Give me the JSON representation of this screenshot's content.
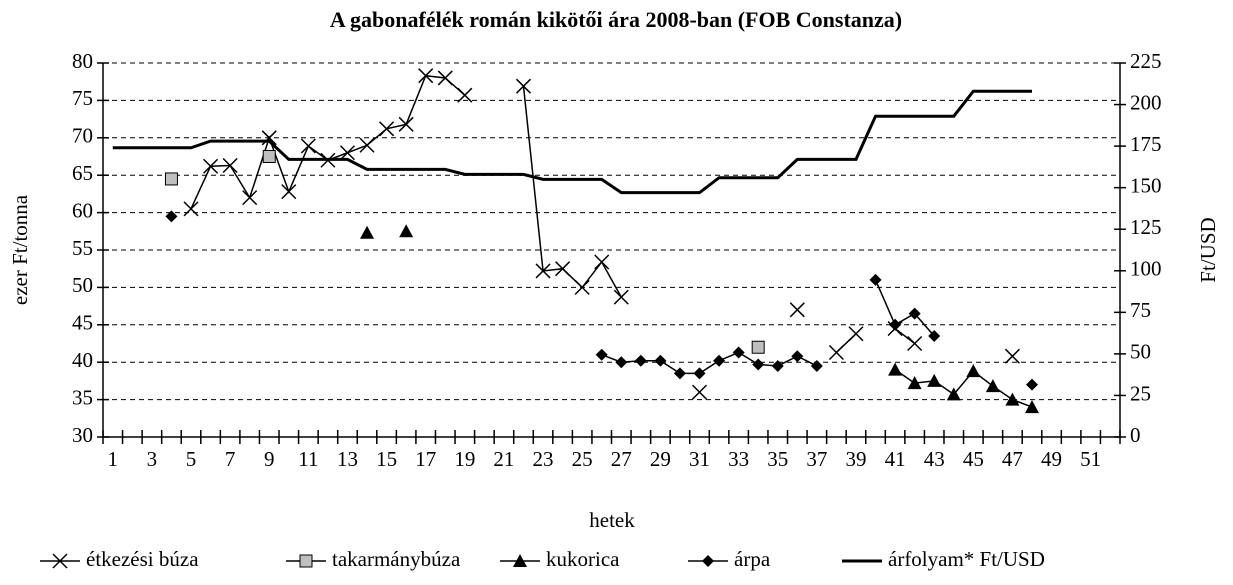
{
  "chart_data": {
    "type": "line",
    "title": "A gabonafélék román kikötői ára 2008-ban (FOB Constanza)",
    "xlabel": "hetek",
    "ylabel": "ezer Ft/tonna",
    "y2label": "Ft/USD",
    "categories": [
      1,
      null,
      3,
      null,
      5,
      null,
      7,
      null,
      9,
      null,
      11,
      null,
      13,
      null,
      15,
      null,
      17,
      null,
      19,
      null,
      21,
      null,
      23,
      null,
      25,
      null,
      27,
      null,
      29,
      null,
      31,
      null,
      33,
      null,
      35,
      null,
      37,
      null,
      39,
      null,
      41,
      null,
      43,
      null,
      45,
      null,
      47,
      null,
      49,
      null,
      51,
      null
    ],
    "ylim": [
      30,
      80
    ],
    "yticks": [
      30,
      35,
      40,
      45,
      50,
      55,
      60,
      65,
      70,
      75,
      80
    ],
    "y2lim": [
      0,
      225
    ],
    "y2ticks": [
      0,
      25,
      50,
      75,
      100,
      125,
      150,
      175,
      200,
      225
    ],
    "grid": true,
    "legend": "bottom",
    "series": [
      {
        "name": "étkezési búza",
        "color": "#000000",
        "marker": "x",
        "values": [
          null,
          null,
          null,
          null,
          60.5,
          66.2,
          66.3,
          62,
          70,
          62.8,
          68.9,
          67,
          68,
          69,
          71.2,
          71.8,
          78.3,
          78,
          75.7,
          null,
          null,
          76.9,
          52.2,
          52.5,
          50,
          53.4,
          48.7,
          null,
          null,
          null,
          36,
          null,
          null,
          null,
          null,
          47,
          null,
          41.3,
          43.8,
          null,
          44.5,
          42.5,
          null,
          null,
          null,
          null,
          40.8,
          null,
          null,
          null,
          null,
          null
        ]
      },
      {
        "name": "takarmánybúza",
        "color": "#000000",
        "marker": "square",
        "values": [
          null,
          null,
          null,
          64.5,
          null,
          null,
          null,
          null,
          67.5,
          null,
          null,
          null,
          null,
          null,
          null,
          null,
          null,
          null,
          null,
          null,
          null,
          null,
          null,
          null,
          null,
          null,
          null,
          null,
          null,
          null,
          null,
          null,
          null,
          42,
          null,
          null,
          null,
          null,
          null,
          null,
          null,
          null,
          null,
          null,
          null,
          null,
          null,
          null,
          null,
          null,
          null,
          null
        ]
      },
      {
        "name": "kukorica",
        "color": "#000000",
        "marker": "triangle",
        "values": [
          null,
          null,
          null,
          null,
          null,
          null,
          null,
          null,
          null,
          null,
          null,
          null,
          null,
          57.3,
          null,
          57.5,
          null,
          null,
          null,
          null,
          null,
          null,
          null,
          null,
          null,
          null,
          null,
          null,
          null,
          null,
          null,
          null,
          null,
          null,
          null,
          null,
          null,
          null,
          null,
          null,
          39,
          37.2,
          37.5,
          35.7,
          38.8,
          36.8,
          35,
          34,
          null,
          null,
          null,
          null
        ]
      },
      {
        "name": "árpa",
        "color": "#000000",
        "marker": "diamond",
        "values": [
          null,
          null,
          null,
          59.5,
          null,
          null,
          null,
          null,
          null,
          null,
          null,
          null,
          null,
          null,
          null,
          null,
          null,
          null,
          null,
          null,
          null,
          null,
          null,
          null,
          null,
          41,
          40,
          40.2,
          40.2,
          38.5,
          38.5,
          40.2,
          41.3,
          39.7,
          39.5,
          40.8,
          39.5,
          null,
          null,
          51,
          45,
          46.5,
          43.5,
          null,
          null,
          null,
          null,
          37,
          null,
          null,
          null,
          null
        ]
      },
      {
        "name": "árfolyam* Ft/USD",
        "color": "#000000",
        "marker": "none",
        "axis": "y2",
        "values": [
          174,
          174,
          174,
          174,
          174,
          178,
          178,
          178,
          178,
          167,
          167,
          167,
          167,
          161,
          161,
          161,
          161,
          161,
          158,
          158,
          158,
          158,
          155,
          155,
          155,
          155,
          147,
          147,
          147,
          147,
          147,
          156,
          156,
          156,
          156,
          167,
          167,
          167,
          167,
          193,
          193,
          193,
          193,
          193,
          208,
          208,
          208,
          208,
          null,
          null,
          null,
          null
        ]
      }
    ]
  }
}
